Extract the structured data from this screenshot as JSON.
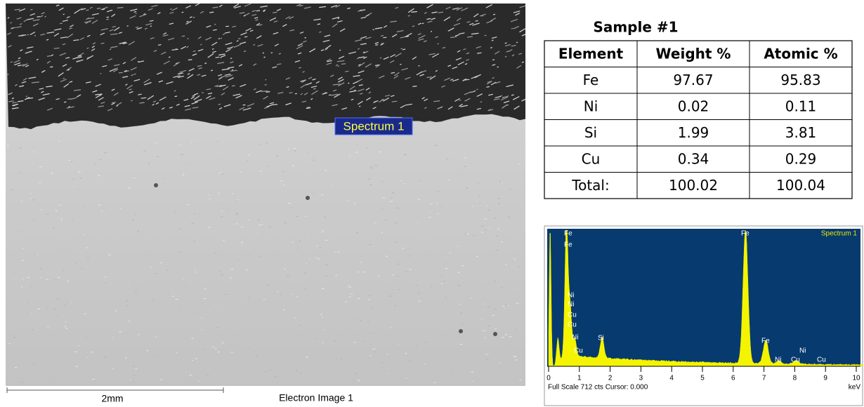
{
  "image": {
    "label": "Spectrum 1",
    "scale_bar": "2mm",
    "caption": "Electron Image 1"
  },
  "table": {
    "title": "Sample #1",
    "header": [
      "Element",
      "Weight %",
      "Atomic %"
    ],
    "rows": [
      [
        "Fe",
        "97.67",
        "95.83"
      ],
      [
        "Ni",
        "0.02",
        "0.11"
      ],
      [
        "Si",
        "1.99",
        "3.81"
      ],
      [
        "Cu",
        "0.34",
        "0.29"
      ],
      [
        "Total:",
        "100.02",
        "100.04"
      ]
    ]
  },
  "spectrum": {
    "title": "Spectrum 1",
    "peak_labels": [
      "Fe",
      "Fe",
      "Ni",
      "Ni",
      "Cu",
      "Cu",
      "Ni",
      "Cu",
      "Si",
      "Fe",
      "Fe",
      "Ni",
      "Cu",
      "Ni",
      "Cu"
    ],
    "x_ticks": [
      0,
      1,
      2,
      3,
      4,
      5,
      6,
      7,
      8,
      9,
      10
    ],
    "unit": "keV",
    "footer": "Full Scale 712 cts Cursor: 0.000"
  }
}
